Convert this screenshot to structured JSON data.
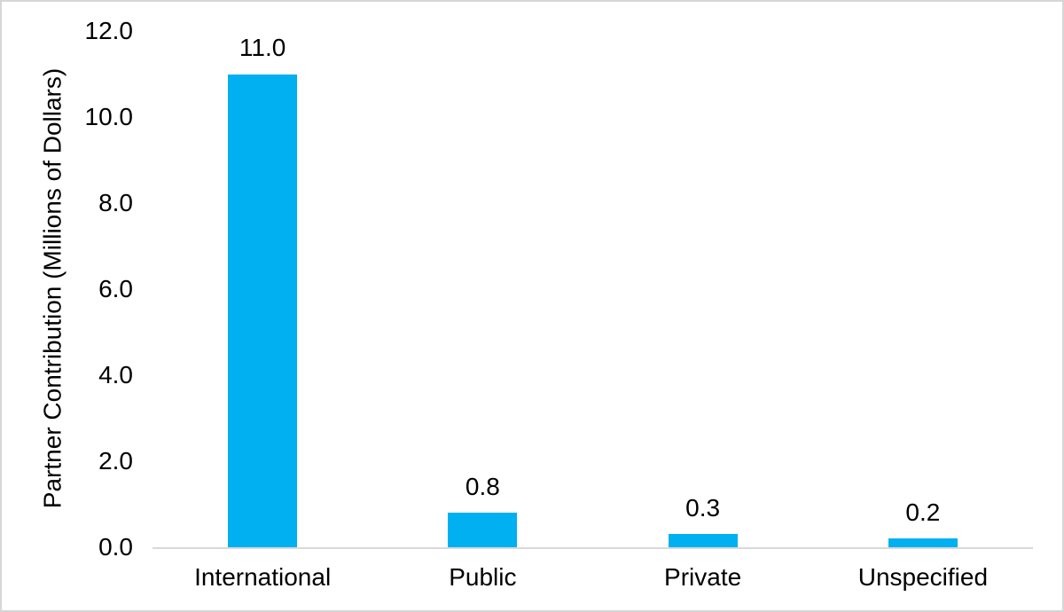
{
  "chart_data": {
    "type": "bar",
    "title": "",
    "ylabel": "Partner Contribution (Millions of Dollars)",
    "xlabel": "",
    "categories": [
      "International",
      "Public",
      "Private",
      "Unspecified"
    ],
    "values": [
      11.0,
      0.8,
      0.3,
      0.2
    ],
    "data_labels": [
      "11.0",
      "0.8",
      "0.3",
      "0.2"
    ],
    "yticks": [
      "0.0",
      "2.0",
      "4.0",
      "6.0",
      "8.0",
      "10.0",
      "12.0"
    ],
    "ylim": [
      0,
      12
    ],
    "gridlines": false,
    "legend_position": "none",
    "bar_color": "#00b0f0",
    "axis_line_color": "#d9d9d9",
    "frame_border_color": "#d6d6d6",
    "text_color": "#000000",
    "background_color": "#ffffff"
  }
}
